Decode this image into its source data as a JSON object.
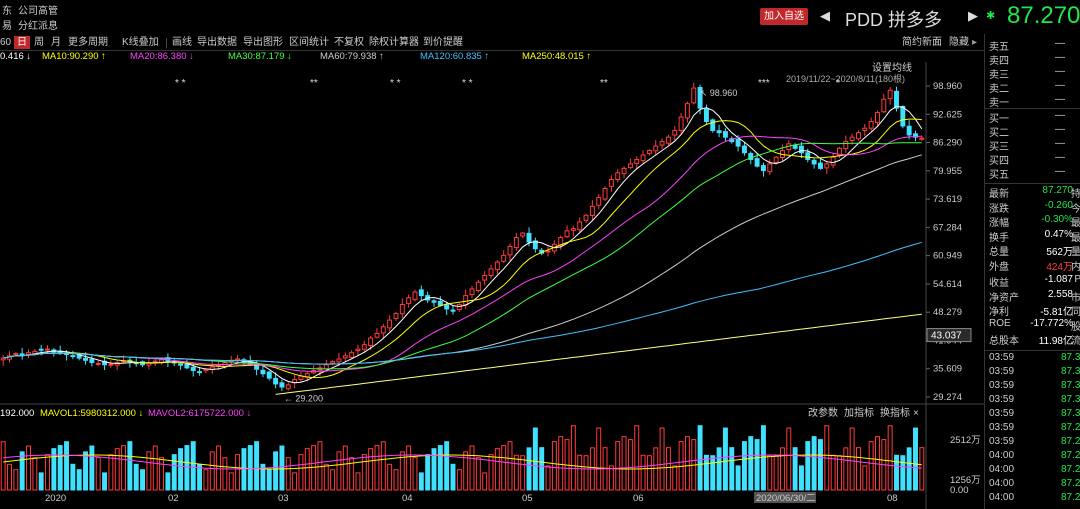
{
  "header": {
    "left_items": [
      "东",
      "公司高管",
      "易",
      "分红派息"
    ],
    "add_btn": "加入自选",
    "symbol": "PDD 拼多多",
    "price": "87.270",
    "prev": "◀",
    "next": "▶",
    "star": "✱"
  },
  "toolbar": {
    "items": [
      "60",
      "日",
      "周",
      "月",
      "更多周期",
      "K线叠加",
      "画线",
      "导出数据",
      "导出图形",
      "区间统计",
      "不复权",
      "除权计算器",
      "到价提醒",
      "简约新面",
      "隐藏"
    ],
    "active": "日"
  },
  "ma_line": {
    "items": [
      {
        "text": "0.416 ↓",
        "color": "#ffffff"
      },
      {
        "text": "MA10:90.290 ↑",
        "color": "#ffff00"
      },
      {
        "text": "MA20:86.380 ↓",
        "color": "#ff40ff"
      },
      {
        "text": "MA30:87.179 ↓",
        "color": "#40ff40"
      },
      {
        "text": "MA60:79.938 ↑",
        "color": "#cccccc"
      },
      {
        "text": "MA120:60.835 ↑",
        "color": "#40c0ff"
      },
      {
        "text": "MA250:48.015 ↑",
        "color": "#ffff00"
      }
    ]
  },
  "chart_info": {
    "settings": "设置均线",
    "range": "2019/11/22~2020/8/11(180根)",
    "high_label": "98.960",
    "low_label": "29.200",
    "current_tag": "43.037",
    "yticks": [
      "98.960",
      "92.625",
      "86.290",
      "79.955",
      "73.619",
      "67.284",
      "60.949",
      "54.614",
      "48.279",
      "41.944",
      "35.609",
      "29.274"
    ],
    "date_labels": [
      "2020",
      "02",
      "03",
      "04",
      "05",
      "06",
      "2020/06/30/二",
      "08"
    ],
    "stars": [
      "* *",
      "**",
      "*  *",
      "*   *",
      "**",
      "***",
      "*"
    ]
  },
  "chart_data": {
    "type": "candlestick",
    "title": "PDD 拼多多",
    "range": "2019/11/22~2020/8/11",
    "ylim": [
      29.274,
      98.96
    ],
    "high": 98.96,
    "low": 29.2,
    "last": 87.27,
    "closes": [
      38,
      38.5,
      39,
      38.6,
      39.2,
      39.5,
      39.8,
      40,
      39.4,
      39,
      38.8,
      38.5,
      38,
      37.5,
      37,
      36.8,
      36.5,
      36.6,
      37,
      37.4,
      37.2,
      36.8,
      36.5,
      36.9,
      37.3,
      37.6,
      37.2,
      36.9,
      36.4,
      35.8,
      35.2,
      34.8,
      35.5,
      36,
      36.4,
      37,
      37.5,
      37.8,
      37.2,
      36.5,
      35.5,
      34.5,
      33.5,
      32.2,
      31.5,
      32,
      33.2,
      34,
      34.5,
      35.2,
      35.8,
      36.5,
      37.2,
      37.8,
      38.5,
      39.2,
      40,
      41,
      42.5,
      43.5,
      45,
      46.5,
      48,
      50,
      51.5,
      52.8,
      52,
      51,
      50.5,
      49.8,
      49,
      48.5,
      50,
      52,
      53.5,
      55,
      56.5,
      58,
      59.5,
      61,
      63,
      65,
      66,
      64,
      62.5,
      61.5,
      62,
      63.5,
      65,
      66.5,
      67,
      68.5,
      70,
      72,
      74,
      76,
      78,
      79.5,
      80.5,
      81.5,
      82.5,
      83.5,
      84.5,
      85.5,
      86.5,
      87.5,
      89,
      92,
      95,
      98.5,
      94,
      91,
      89,
      88.5,
      87.5,
      86.5,
      85.5,
      84,
      82.5,
      81,
      80,
      81.5,
      83,
      84.5,
      86,
      85,
      84,
      82.5,
      81.5,
      80.5,
      81.5,
      83,
      85,
      86.5,
      87.5,
      88.5,
      89.5,
      91,
      93,
      96,
      98,
      94,
      90,
      88,
      87.5,
      87.27
    ],
    "volume": {
      "labels": [
        "192.000",
        "MAVOL1:5980312.000",
        "MAVOL2:6175722.000"
      ],
      "yticks": [
        "2512万",
        "1256万",
        "0.00"
      ],
      "buttons": [
        "改参数",
        "加指标",
        "换指标",
        "×"
      ]
    }
  },
  "right_panel": {
    "orderbook": [
      {
        "l": "卖五",
        "v": "—"
      },
      {
        "l": "卖四",
        "v": "—"
      },
      {
        "l": "卖三",
        "v": "—"
      },
      {
        "l": "卖二",
        "v": "—"
      },
      {
        "l": "卖一",
        "v": "—"
      },
      {
        "l": "买一",
        "v": "—"
      },
      {
        "l": "买二",
        "v": "—"
      },
      {
        "l": "买三",
        "v": "—"
      },
      {
        "l": "买四",
        "v": "—"
      },
      {
        "l": "买五",
        "v": "—"
      }
    ],
    "quotes": [
      {
        "l": "最新",
        "v": "87.270",
        "x": "持",
        "cls": "green"
      },
      {
        "l": "涨跌",
        "v": "-0.260",
        "x": "今",
        "cls": "green"
      },
      {
        "l": "涨幅",
        "v": "-0.30%",
        "x": "最",
        "cls": "green"
      },
      {
        "l": "换手",
        "v": "0.47%",
        "x": "最",
        "cls": "white"
      },
      {
        "l": "总量",
        "v": "562万",
        "x": "量",
        "cls": "white"
      },
      {
        "l": "外盘",
        "v": "424万",
        "x": "内",
        "cls": "red"
      },
      {
        "l": "收益",
        "v": "-1.087",
        "x": "P",
        "cls": "white"
      },
      {
        "l": "净资产",
        "v": "2.558",
        "x": "市",
        "cls": "white"
      },
      {
        "l": "净利",
        "v": "-5.81亿",
        "x": "同",
        "cls": "white"
      },
      {
        "l": "ROE",
        "v": "-17.772%",
        "x": "股",
        "cls": "white"
      },
      {
        "l": "总股本",
        "v": "11.98亿",
        "x": "流",
        "cls": "white"
      }
    ],
    "ticks": [
      {
        "t": "03:59",
        "p": "87.3"
      },
      {
        "t": "03:59",
        "p": "87.3"
      },
      {
        "t": "03:59",
        "p": "87.3"
      },
      {
        "t": "03:59",
        "p": "87.3"
      },
      {
        "t": "03:59",
        "p": "87.3"
      },
      {
        "t": "03:59",
        "p": "87.2"
      },
      {
        "t": "03:59",
        "p": "87.2"
      },
      {
        "t": "04:00",
        "p": "87.2"
      },
      {
        "t": "04:00",
        "p": "87.2"
      },
      {
        "t": "04:00",
        "p": "87.2"
      },
      {
        "t": "04:00",
        "p": "87.2"
      }
    ]
  }
}
